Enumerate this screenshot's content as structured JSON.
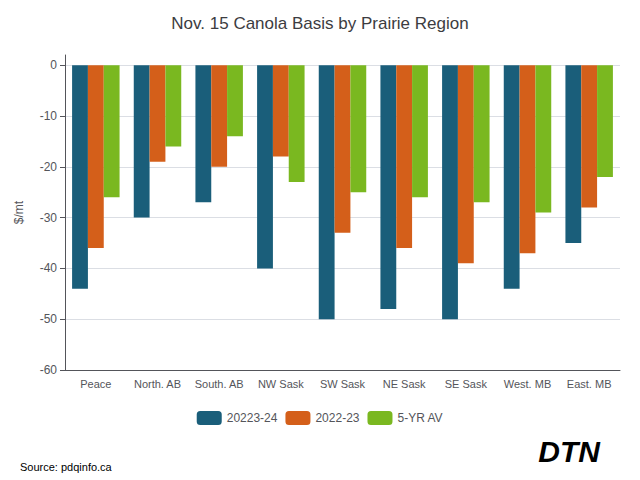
{
  "chart_data": {
    "type": "bar",
    "title": "Nov. 15 Canola Basis by Prairie Region",
    "categories": [
      "Peace",
      "North. AB",
      "South. AB",
      "NW Sask",
      "SW Sask",
      "NE Sask",
      "SE Sask",
      "West. MB",
      "East. MB"
    ],
    "series": [
      {
        "name": "20223-24",
        "color": "#1a5e7a",
        "values": [
          -44,
          -30,
          -27,
          -40,
          -50,
          -48,
          -50,
          -44,
          -35
        ]
      },
      {
        "name": "2022-23",
        "color": "#d45f1a",
        "values": [
          -36,
          -19,
          -20,
          -18,
          -33,
          -36,
          -39,
          -37,
          -28
        ]
      },
      {
        "name": "5-YR AV",
        "color": "#7ab820",
        "values": [
          -26,
          -16,
          -14,
          -23,
          -25,
          -26,
          -27,
          -29,
          -22
        ]
      }
    ],
    "ylabel": "$/mt",
    "ylim": [
      -60,
      2
    ],
    "yticks": [
      0,
      -10,
      -20,
      -30,
      -40,
      -50,
      -60
    ],
    "grid": true,
    "legend": "bottom",
    "annotations": [
      "Source: pdqinfo.ca",
      "DTN"
    ]
  }
}
